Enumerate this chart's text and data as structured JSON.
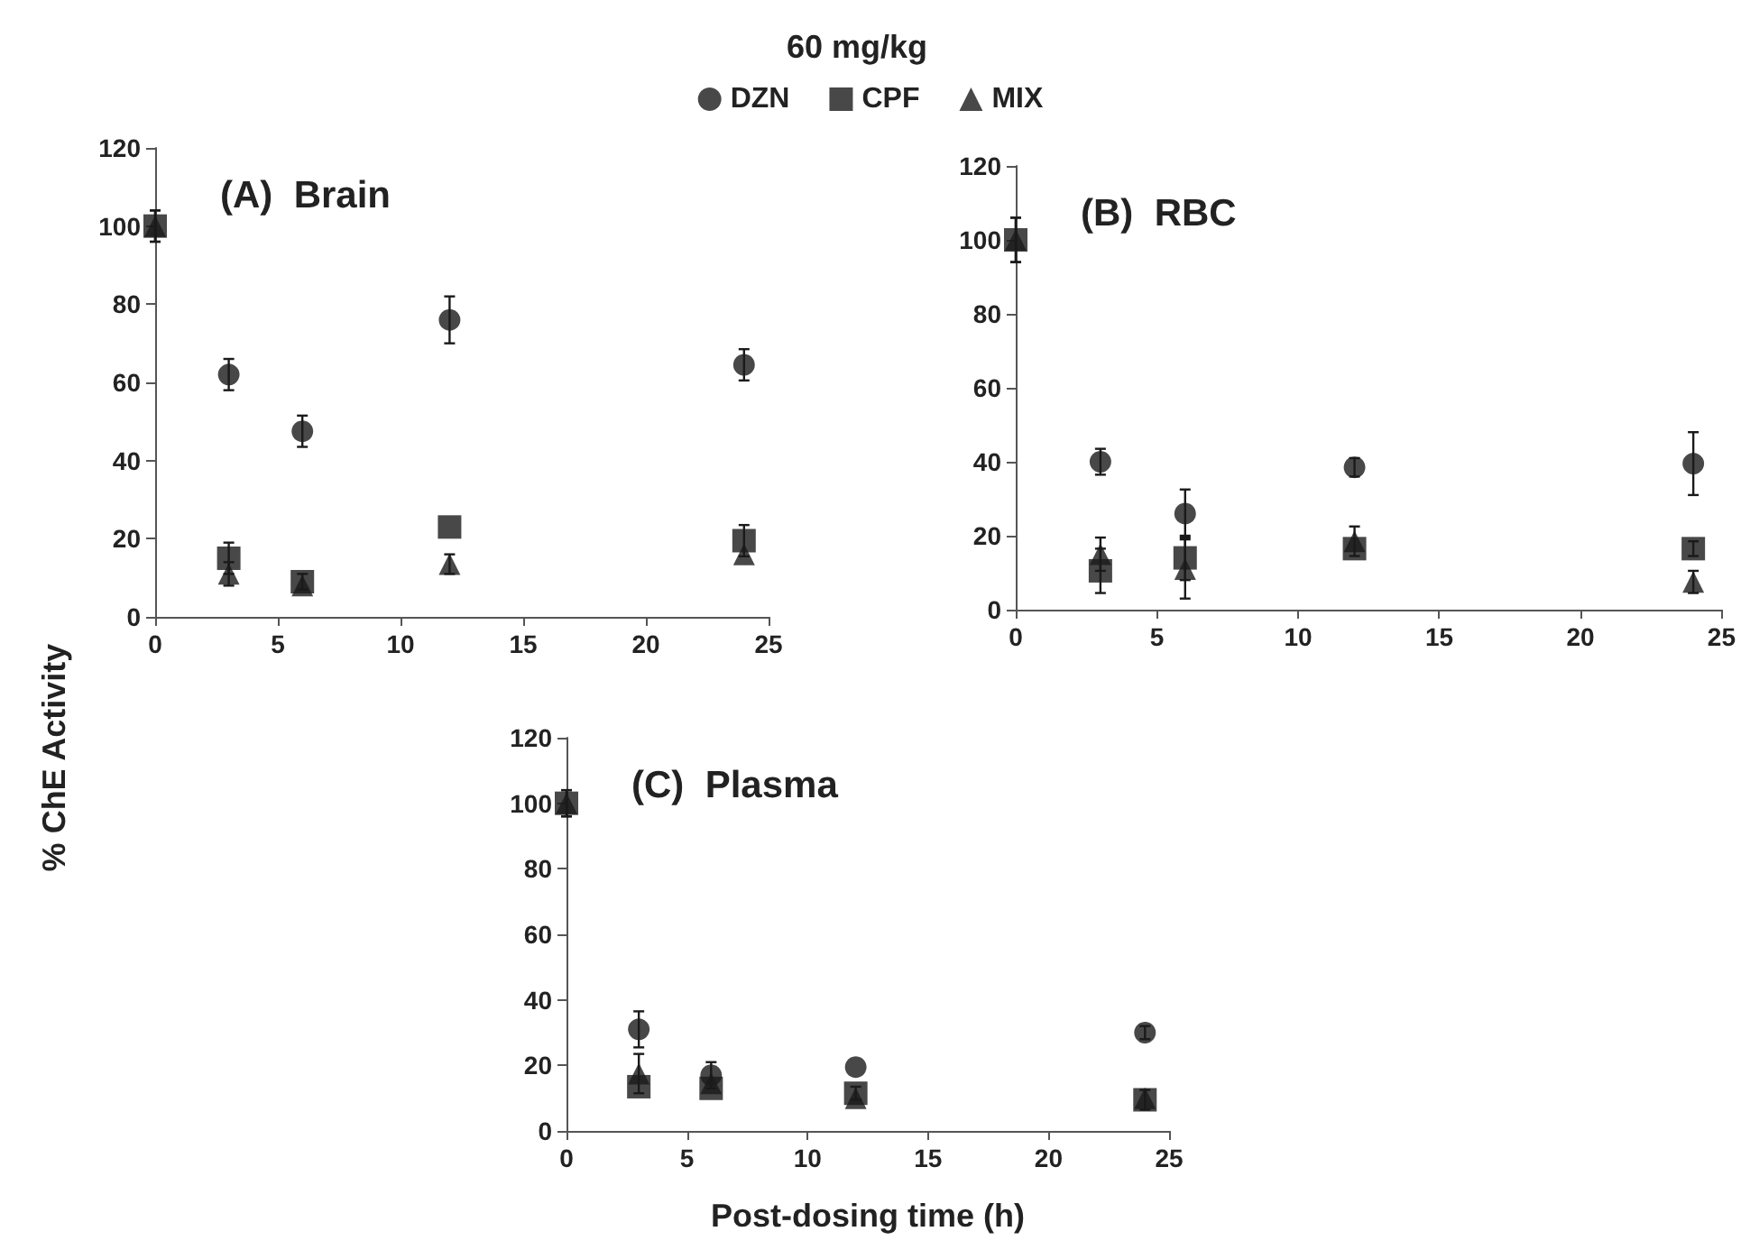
{
  "chart_data": [
    {
      "type": "scatter",
      "title": "60 mg/kg",
      "ylabel": "% ChE Activity",
      "annotations": [
        "(A)  Brain"
      ],
      "legend": "top",
      "grid": false,
      "x": [
        0,
        3,
        6,
        12,
        24
      ],
      "xlim": [
        0,
        25
      ],
      "xticks": [
        0,
        5,
        10,
        15,
        20,
        25
      ],
      "ylim": [
        0,
        120
      ],
      "yticks": [
        0,
        20,
        40,
        60,
        80,
        100,
        120
      ],
      "series": [
        {
          "name": "DZN",
          "color": "#1a1a1a",
          "marker": "circle",
          "values": [
            null,
            62,
            47.5,
            76,
            64.5
          ],
          "errors": [
            null,
            4,
            4,
            6,
            4
          ]
        },
        {
          "name": "CPF",
          "color": "#1a1a1a",
          "marker": "square",
          "values": [
            100,
            15,
            9,
            23,
            19.5
          ],
          "errors": [
            4,
            4,
            2,
            null,
            4
          ]
        },
        {
          "name": "MIX",
          "color": "#1a1a1a",
          "marker": "triangle",
          "values": [
            100,
            11,
            8,
            13.5,
            16
          ],
          "errors": [
            4,
            3,
            null,
            2.5,
            null
          ]
        }
      ]
    },
    {
      "type": "scatter",
      "annotations": [
        "(B)  RBC"
      ],
      "grid": false,
      "x": [
        0,
        3,
        6,
        12,
        24
      ],
      "xlim": [
        0,
        25
      ],
      "xticks": [
        0,
        5,
        10,
        15,
        20,
        25
      ],
      "ylim": [
        0,
        120
      ],
      "yticks": [
        0,
        20,
        40,
        60,
        80,
        100,
        120
      ],
      "series": [
        {
          "color": "#1a1a1a",
          "marker": "circle",
          "values": [
            null,
            40,
            26,
            38.5,
            39.5
          ],
          "errors": [
            null,
            3.5,
            6.5,
            2.5,
            8.5
          ]
        },
        {
          "color": "#1a1a1a",
          "marker": "square",
          "values": [
            100,
            10.5,
            14,
            16.5,
            16.5
          ],
          "errors": [
            6,
            6,
            6,
            null,
            2
          ]
        },
        {
          "color": "#1a1a1a",
          "marker": "triangle",
          "values": [
            100,
            15,
            11,
            18.5,
            7.5
          ],
          "errors": [
            6,
            4.5,
            8,
            4,
            3
          ]
        }
      ]
    },
    {
      "type": "scatter",
      "xlabel": "Post-dosing time (h)",
      "annotations": [
        "(C)  Plasma"
      ],
      "grid": false,
      "x": [
        0,
        3,
        6,
        12,
        24
      ],
      "xlim": [
        0,
        25
      ],
      "xticks": [
        0,
        5,
        10,
        15,
        20,
        25
      ],
      "ylim": [
        0,
        120
      ],
      "yticks": [
        0,
        20,
        40,
        60,
        80,
        100,
        120
      ],
      "series": [
        {
          "color": "#1a1a1a",
          "marker": "circle",
          "values": [
            null,
            31,
            17,
            19.5,
            30
          ],
          "errors": [
            null,
            5.5,
            4,
            null,
            2
          ]
        },
        {
          "color": "#1a1a1a",
          "marker": "square",
          "values": [
            100,
            13.5,
            13,
            11.5,
            9.5
          ],
          "errors": [
            4,
            null,
            null,
            2,
            3
          ]
        },
        {
          "color": "#1a1a1a",
          "marker": "triangle",
          "values": [
            100,
            17.5,
            14.5,
            10,
            10
          ],
          "errors": [
            4,
            6,
            null,
            null,
            null
          ]
        }
      ]
    }
  ]
}
